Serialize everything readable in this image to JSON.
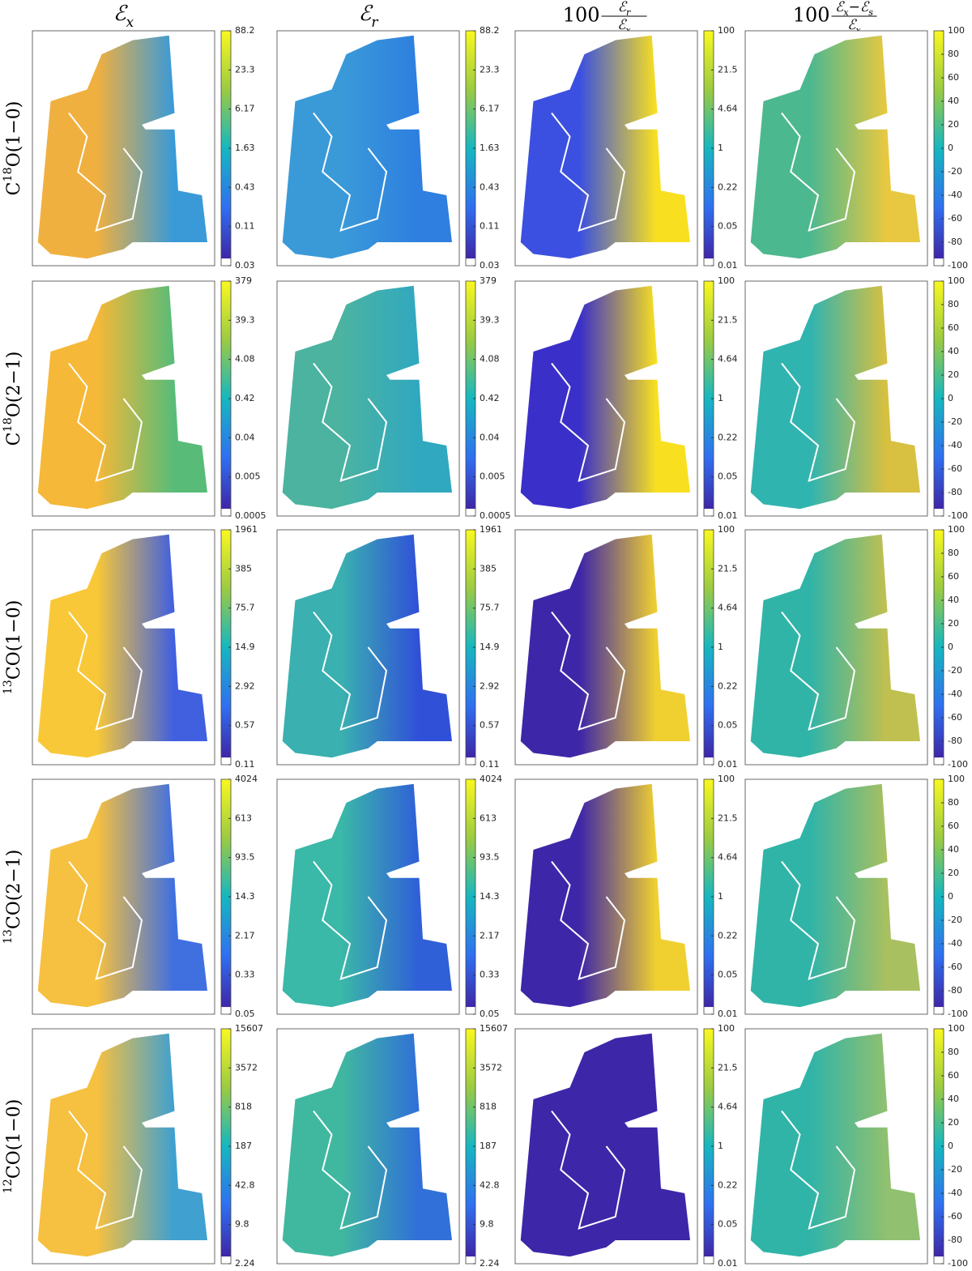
{
  "columns": [
    {
      "main": [
        {
          "t": "ℰ"
        },
        {
          "sub": "x"
        }
      ]
    },
    {
      "main": [
        {
          "t": "ℰ"
        },
        {
          "sub": "r"
        }
      ]
    },
    {
      "factor": "100",
      "num": [
        {
          "t": "ℰ"
        },
        {
          "sub": "r"
        }
      ],
      "den": [
        {
          "t": "ℰ"
        },
        {
          "sub": "x"
        }
      ]
    },
    {
      "factor": "100",
      "num": [
        {
          "t": "ℰ"
        },
        {
          "sub": "x"
        },
        {
          "t": "−ℰ"
        },
        {
          "sub": "s"
        }
      ],
      "den": [
        {
          "t": "ℰ"
        },
        {
          "sub": "x"
        }
      ]
    }
  ],
  "rows": [
    {
      "label": [
        {
          "t": "C"
        },
        {
          "sup": "18"
        },
        {
          "t": "O(1−0)"
        }
      ],
      "scale_ticks": [
        "88.2",
        "23.3",
        "6.17",
        "1.63",
        "0.43",
        "0.11",
        "0.03"
      ]
    },
    {
      "label": [
        {
          "t": "C"
        },
        {
          "sup": "18"
        },
        {
          "t": "O(2−1)"
        }
      ],
      "scale_ticks": [
        "379",
        "39.3",
        "4.08",
        "0.42",
        "0.04",
        "0.005",
        "0.0005"
      ]
    },
    {
      "label": [
        {
          "sup": "13"
        },
        {
          "t": "CO(1−0)"
        }
      ],
      "scale_ticks": [
        "1961",
        "385",
        "75.7",
        "14.9",
        "2.92",
        "0.57",
        "0.11"
      ]
    },
    {
      "label": [
        {
          "sup": "13"
        },
        {
          "t": "CO(2−1)"
        }
      ],
      "scale_ticks": [
        "4024",
        "613",
        "93.5",
        "14.3",
        "2.17",
        "0.33",
        "0.05"
      ]
    },
    {
      "label": [
        {
          "sup": "12"
        },
        {
          "t": "CO(1−0)"
        }
      ],
      "scale_ticks": [
        "15607",
        "3572",
        "818",
        "187",
        "42.8",
        "9.8",
        "2.24"
      ]
    }
  ],
  "ratio_ticks": [
    "100",
    "21.5",
    "4.64",
    "1",
    "0.22",
    "0.05",
    "0.01"
  ],
  "diff_ticks": [
    "100",
    "80",
    "60",
    "40",
    "20",
    "0",
    "-20",
    "-40",
    "-60",
    "-80",
    "-100"
  ]
}
